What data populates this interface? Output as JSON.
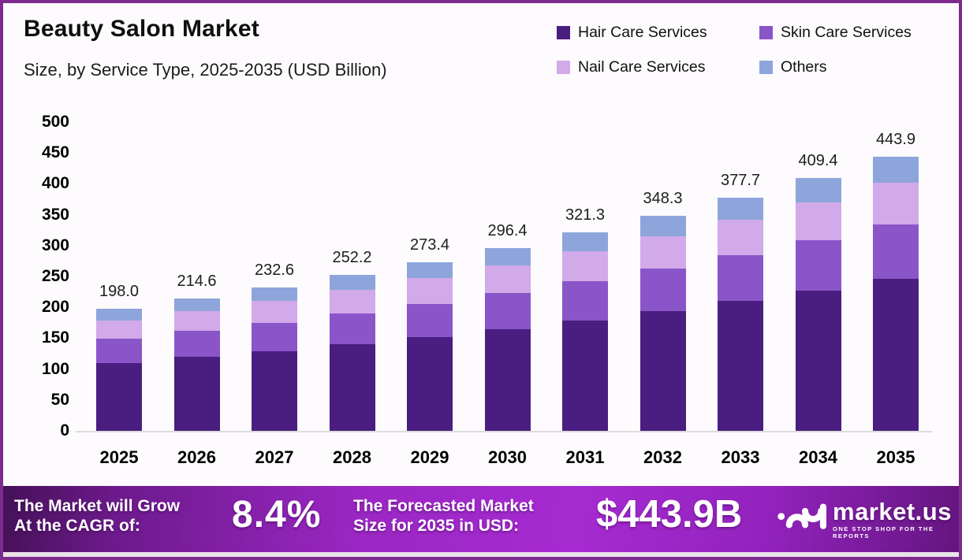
{
  "header": {
    "title": "Beauty Salon Market",
    "subtitle": "Size, by Service Type, 2025-2035 (USD Billion)"
  },
  "legend": [
    {
      "label": "Hair Care Services",
      "color": "#4a1e80"
    },
    {
      "label": "Skin Care Services",
      "color": "#8a55c8"
    },
    {
      "label": "Nail Care Services",
      "color": "#d2a9e9"
    },
    {
      "label": "Others",
      "color": "#8da5db"
    }
  ],
  "chart_data": {
    "type": "bar",
    "stacked": true,
    "title": "Beauty Salon Market Size, by Service Type, 2025-2035 (USD Billion)",
    "categories": [
      "2025",
      "2026",
      "2027",
      "2028",
      "2029",
      "2030",
      "2031",
      "2032",
      "2033",
      "2034",
      "2035"
    ],
    "totals": [
      198.0,
      214.6,
      232.6,
      252.2,
      273.4,
      296.4,
      321.3,
      348.3,
      377.7,
      409.4,
      443.9
    ],
    "series": [
      {
        "name": "Hair Care Services",
        "color": "#4a1e80",
        "values": [
          110.1,
          119.3,
          129.3,
          140.2,
          152.0,
          164.8,
          178.6,
          193.7,
          210.0,
          227.6,
          246.8
        ]
      },
      {
        "name": "Skin Care Services",
        "color": "#8a55c8",
        "values": [
          39.0,
          42.3,
          45.8,
          49.7,
          53.9,
          58.4,
          63.3,
          68.6,
          74.4,
          80.7,
          87.4
        ]
      },
      {
        "name": "Nail Care Services",
        "color": "#d2a9e9",
        "values": [
          29.9,
          32.4,
          35.1,
          38.1,
          41.3,
          44.8,
          48.5,
          52.6,
          57.0,
          61.8,
          67.0
        ]
      },
      {
        "name": "Others",
        "color": "#8da5db",
        "values": [
          19.0,
          20.6,
          22.4,
          24.2,
          26.2,
          28.4,
          30.9,
          33.4,
          36.3,
          39.3,
          42.7
        ]
      }
    ],
    "xlabel": "",
    "ylabel": "",
    "ylim": [
      0,
      500
    ],
    "yticks": [
      0,
      50,
      100,
      150,
      200,
      250,
      300,
      350,
      400,
      450,
      500
    ],
    "grid": false,
    "legend_position": "top-right",
    "value_labels": "total above each bar, one decimal"
  },
  "banner": {
    "cagr_label_line1": "The Market will Grow",
    "cagr_label_line2": "At the CAGR of:",
    "cagr_value": "8.4%",
    "forecast_label_line1": "The Forecasted Market",
    "forecast_label_line2": "Size for 2035 in USD:",
    "forecast_value": "$443.9B",
    "logo_name": "market.us",
    "logo_tagline": "ONE STOP SHOP FOR THE REPORTS"
  },
  "colors": {
    "frame_border": "#7d2b8f",
    "background": "#fdfbfd",
    "banner_gradient_mid": "#a62bd1",
    "banner_gradient_edge": "#451157",
    "axis_line": "#dcdcdc",
    "text": "#0f0f0f"
  }
}
